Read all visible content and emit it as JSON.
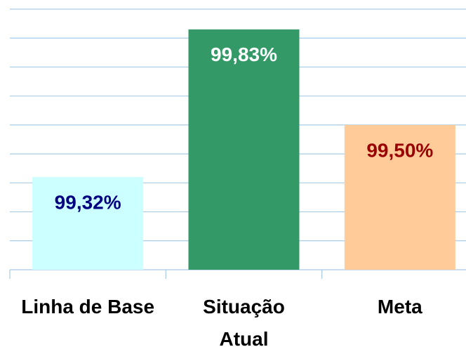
{
  "chart_data": {
    "type": "bar",
    "categories": [
      "Linha de Base",
      "Situação Atual",
      "Meta"
    ],
    "values": [
      99.32,
      99.83,
      99.5
    ],
    "value_labels": [
      "99,32%",
      "99,83%",
      "99,50%"
    ],
    "colors": [
      "#ccffff",
      "#339966",
      "#ffcc99"
    ],
    "label_colors": [
      "#000080",
      "#ffffff",
      "#990000"
    ],
    "ylim": [
      99.0,
      99.9
    ],
    "yticks": [
      99.0,
      99.1,
      99.2,
      99.3,
      99.4,
      99.5,
      99.6,
      99.7,
      99.8,
      99.9
    ],
    "grid": true
  }
}
